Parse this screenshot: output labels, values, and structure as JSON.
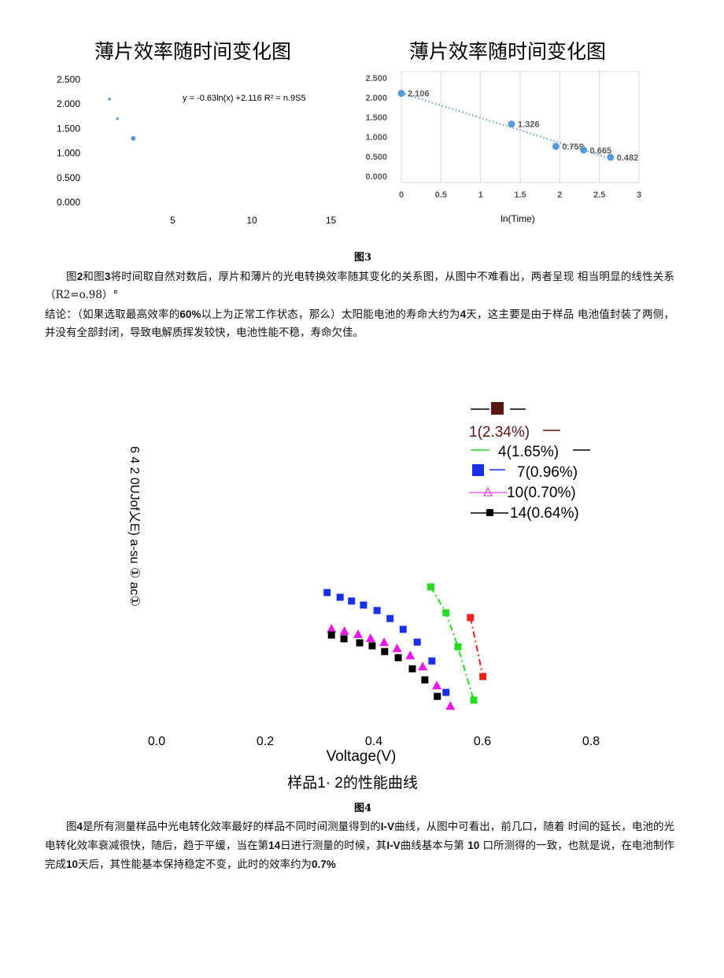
{
  "chart_data": [
    {
      "type": "scatter",
      "title": "薄片效率随时间变化图",
      "annotation": "y = -0.63ln(x) +2.116 R² = n.9S5",
      "x": [
        1,
        1.5,
        2.5
      ],
      "values": [
        2.1,
        1.7,
        1.3
      ],
      "color": "#5b9bd5",
      "xlim": [
        0,
        16
      ],
      "ylim": [
        0,
        2.5
      ],
      "xticks": [
        5,
        10,
        15
      ],
      "yticks": [
        {
          "value": 2.5,
          "label": "2.500"
        },
        {
          "value": 2,
          "label": "2.000"
        },
        {
          "value": 1.5,
          "label": "1.500"
        },
        {
          "value": 1,
          "label": "1.000"
        },
        {
          "value": 0.5,
          "label": "0.500"
        },
        {
          "value": 0,
          "label": "0.000"
        }
      ],
      "grid": false
    },
    {
      "type": "scatter",
      "title": "薄片效率随时间变化图",
      "x_label": "ln(Time)",
      "x": [
        0,
        1.39,
        1.95,
        2.3,
        2.64
      ],
      "values": [
        2.106,
        1.326,
        0.759,
        0.665,
        0.482
      ],
      "color": "#5b9bd5",
      "trendline": {
        "x": [
          0,
          2.64
        ],
        "values": [
          2.116,
          0.45
        ]
      },
      "xlim": [
        0,
        3
      ],
      "ylim": [
        0,
        2.5
      ],
      "xticks": [
        0,
        0.5,
        1,
        1.5,
        2,
        2.5,
        3
      ],
      "yticks": [
        {
          "value": 2.5,
          "label": "2.500"
        },
        {
          "value": 2,
          "label": "2.000"
        },
        {
          "value": 1.5,
          "label": "1.500"
        },
        {
          "value": 1,
          "label": "1.000"
        },
        {
          "value": 0.5,
          "label": "0.500"
        },
        {
          "value": 0,
          "label": "0.000"
        }
      ],
      "grid": true
    },
    {
      "type": "scatter",
      "y_label": "6 4 2 0UJof乂E) a-su ① ac①",
      "x_label": "Voltage(V)",
      "caption": "样品1· 2的性能曲线",
      "xlim": [
        0,
        0.8
      ],
      "ylim": [
        0,
        6
      ],
      "xticks": [
        {
          "value": 0,
          "label": "0.0"
        },
        {
          "value": 0.2,
          "label": "0.2"
        },
        {
          "value": 0.4,
          "label": "0.4"
        },
        {
          "value": 0.6,
          "label": "0.6"
        },
        {
          "value": 0.8,
          "label": "0.8"
        }
      ],
      "series": [
        {
          "name": "1(2.34%)",
          "color": "#e8211a",
          "marker": "square",
          "line": true,
          "x": [
            0.578,
            0.601
          ],
          "values": [
            4.27,
            1.77
          ]
        },
        {
          "name": "4(1.65%)",
          "color": "#22dd22",
          "marker": "square",
          "line": true,
          "x": [
            0.505,
            0.533,
            0.555,
            0.584
          ],
          "values": [
            5.57,
            4.47,
            3.03,
            0.77
          ]
        },
        {
          "name": "7(0.96%)",
          "color": "#1a2fe8",
          "marker": "square",
          "line": false,
          "x": [
            0.314,
            0.338,
            0.359,
            0.381,
            0.406,
            0.43,
            0.454,
            0.48,
            0.507,
            0.533
          ],
          "values": [
            5.33,
            5.13,
            4.97,
            4.8,
            4.57,
            4.23,
            3.77,
            3.23,
            2.43,
            1.1
          ]
        },
        {
          "name": "10(0.70%)",
          "color": "#e81ae8",
          "marker": "triangle",
          "line": false,
          "x": [
            0.322,
            0.346,
            0.371,
            0.394,
            0.419,
            0.443,
            0.467,
            0.49,
            0.516,
            0.541
          ],
          "values": [
            3.8,
            3.7,
            3.57,
            3.4,
            3.23,
            2.97,
            2.67,
            2.2,
            1.4,
            0.53
          ]
        },
        {
          "name": "14(0.64%)",
          "color": "#000000",
          "marker": "square",
          "line": false,
          "x": [
            0.322,
            0.345,
            0.374,
            0.397,
            0.42,
            0.445,
            0.471,
            0.494,
            0.517
          ],
          "values": [
            3.53,
            3.37,
            3.2,
            3.07,
            2.83,
            2.57,
            2.1,
            1.63,
            0.93
          ]
        }
      ]
    }
  ],
  "document": {
    "figure3_caption": "图3",
    "figure4_caption": "图4",
    "paragraphs": [
      {
        "indent": true,
        "runs": [
          {
            "text": "图"
          },
          {
            "text": "2",
            "bold": true
          },
          {
            "text": "和图"
          },
          {
            "text": "3",
            "bold": true
          },
          {
            "text": "将时间取自然对数后，厚片和薄片的光电转换效率随其变化的关系图，从图中不难看出，两者呈现  相当明显的线性关系（R2=o.98）°"
          }
        ]
      },
      {
        "indent": false,
        "runs": [
          {
            "text": "结论：（如果选取最高效率的"
          },
          {
            "text": "60%",
            "bold": true
          },
          {
            "text": "以上为正常工作状态，那么）太阳能电池的寿命大约为"
          },
          {
            "text": "4",
            "bold": true
          },
          {
            "text": "天，这主要是由于样品  电池值封装了两侧，并没有全部封闭，导致电解质挥发较快，电池性能不稳，寿命欠佳。"
          }
        ]
      },
      {
        "indent": true,
        "runs": [
          {
            "text": "图"
          },
          {
            "text": "4",
            "bold": true
          },
          {
            "text": "是所有测量样品中光电转化效率最好的样品不同时间测量得到的"
          },
          {
            "text": "I-V",
            "bold": true
          },
          {
            "text": "曲线，从图中可看出，前几口，随着  时间的延长，电池的光电转化效率衰减很快，随后，趋于平缓，当在第"
          },
          {
            "text": "14",
            "bold": true
          },
          {
            "text": "日进行测量的时候，其"
          },
          {
            "text": "I-V",
            "bold": true
          },
          {
            "text": "曲线基本与第  "
          },
          {
            "text": "10",
            "bold": true
          },
          {
            "text": " 口所测得的一致，也就是说，在电池制作完成"
          },
          {
            "text": "10",
            "bold": true
          },
          {
            "text": "天后，其性能基本保持稳定不变，此时的效率约为"
          },
          {
            "text": "0.7%",
            "bold": true
          }
        ]
      }
    ]
  }
}
